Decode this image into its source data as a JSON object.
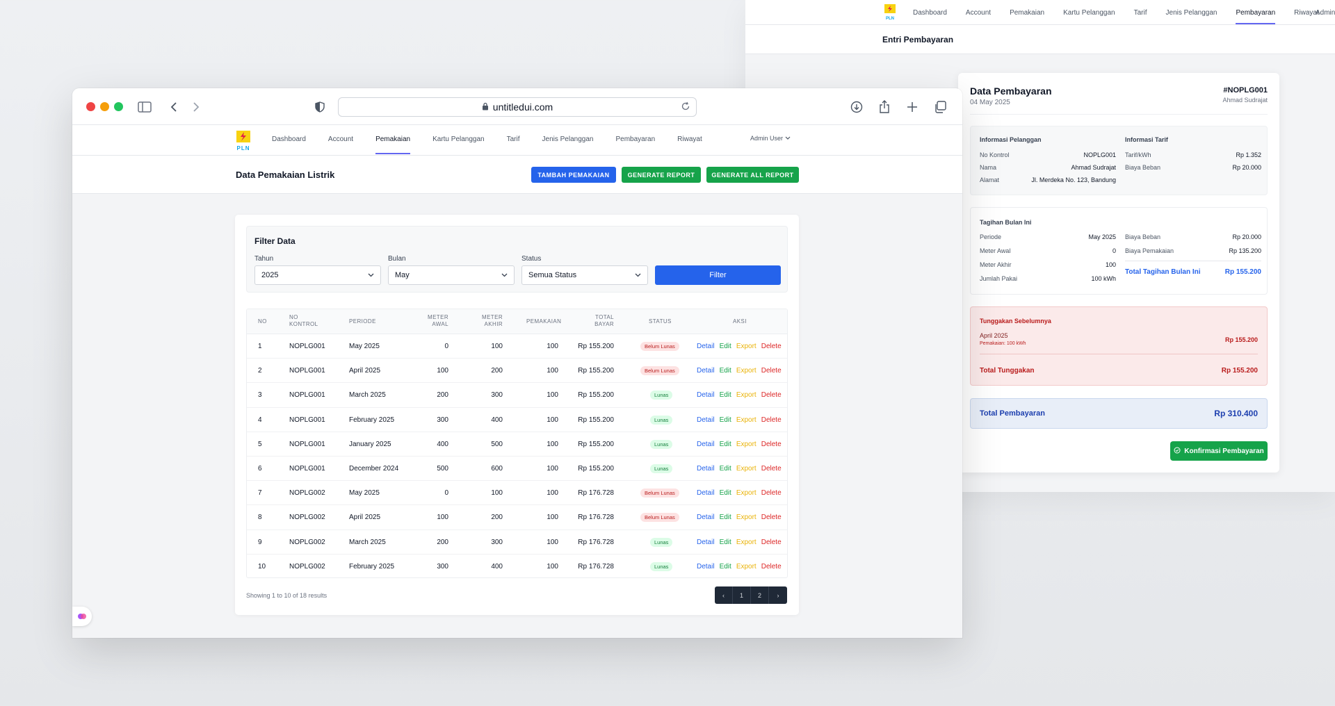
{
  "back": {
    "nav": [
      "Dashboard",
      "Account",
      "Pemakaian",
      "Kartu Pelanggan",
      "Tarif",
      "Jenis Pelanggan",
      "Pembayaran",
      "Riwayat"
    ],
    "admin": "Admin U",
    "page_title": "Entri Pembayaran",
    "card": {
      "title": "Data Pembayaran",
      "date": "04 May 2025",
      "invoice": "#NOPLG001",
      "customer": "Ahmad Sudrajat",
      "info_pelanggan": {
        "heading": "Informasi Pelanggan",
        "rows": [
          {
            "k": "No Kontrol",
            "v": "NOPLG001"
          },
          {
            "k": "Nama",
            "v": "Ahmad Sudrajat"
          },
          {
            "k": "Alamat",
            "v": "Jl. Merdeka No. 123, Bandung"
          }
        ]
      },
      "info_tarif": {
        "heading": "Informasi Tarif",
        "rows": [
          {
            "k": "Tarif/kWh",
            "v": "Rp 1.352"
          },
          {
            "k": "Biaya Beban",
            "v": "Rp 20.000"
          }
        ]
      },
      "tagihan": {
        "heading": "Tagihan Bulan Ini",
        "left": [
          {
            "k": "Periode",
            "v": "May 2025"
          },
          {
            "k": "Meter Awal",
            "v": "0"
          },
          {
            "k": "Meter Akhir",
            "v": "100"
          },
          {
            "k": "Jumlah Pakai",
            "v": "100 kWh"
          }
        ],
        "right": [
          {
            "k": "Biaya Beban",
            "v": "Rp 20.000"
          },
          {
            "k": "Biaya Pemakaian",
            "v": "Rp 135.200"
          }
        ],
        "total_label": "Total Tagihan Bulan Ini",
        "total_value": "Rp 155.200"
      },
      "tunggakan": {
        "heading": "Tunggakan Sebelumnya",
        "item_period": "April 2025",
        "item_note": "Pemakaian: 100 kWh",
        "item_value": "Rp 155.200",
        "total_label": "Total Tunggakan",
        "total_value": "Rp 155.200"
      },
      "total_bayar_label": "Total Pembayaran",
      "total_bayar_value": "Rp 310.400",
      "confirm_label": "Konfirmasi Pembayaran"
    }
  },
  "browser": {
    "url": "untitledui.com"
  },
  "app": {
    "logo_text": "PLN",
    "nav": [
      "Dashboard",
      "Account",
      "Pemakaian",
      "Kartu Pelanggan",
      "Tarif",
      "Jenis Pelanggan",
      "Pembayaran",
      "Riwayat"
    ],
    "active_nav": "Pemakaian",
    "admin": "Admin User",
    "page_title": "Data Pemakaian Listrik",
    "buttons": {
      "tambah": "TAMBAH PEMAKAIAN",
      "generate": "GENERATE REPORT",
      "generate_all": "GENERATE ALL REPORT"
    },
    "filter": {
      "heading": "Filter Data",
      "tahun_label": "Tahun",
      "tahun_value": "2025",
      "bulan_label": "Bulan",
      "bulan_value": "May",
      "status_label": "Status",
      "status_value": "Semua Status",
      "button": "Filter"
    },
    "table": {
      "headers": {
        "no": "NO",
        "kontrol_1": "NO",
        "kontrol_2": "KONTROL",
        "periode": "PERIODE",
        "awal_1": "METER",
        "awal_2": "AWAL",
        "akhir_1": "METER",
        "akhir_2": "AKHIR",
        "pemakaian": "PEMAKAIAN",
        "bayar_1": "TOTAL",
        "bayar_2": "BAYAR",
        "status": "STATUS",
        "aksi": "AKSI"
      },
      "actions": {
        "detail": "Detail",
        "edit": "Edit",
        "export": "Export",
        "delete": "Delete"
      },
      "rows": [
        {
          "no": "1",
          "kontrol": "NOPLG001",
          "periode": "May 2025",
          "awal": "0",
          "akhir": "100",
          "pakai": "100",
          "bayar": "Rp 155.200",
          "status": "Belum Lunas",
          "paid": false
        },
        {
          "no": "2",
          "kontrol": "NOPLG001",
          "periode": "April 2025",
          "awal": "100",
          "akhir": "200",
          "pakai": "100",
          "bayar": "Rp 155.200",
          "status": "Belum Lunas",
          "paid": false
        },
        {
          "no": "3",
          "kontrol": "NOPLG001",
          "periode": "March 2025",
          "awal": "200",
          "akhir": "300",
          "pakai": "100",
          "bayar": "Rp 155.200",
          "status": "Lunas",
          "paid": true
        },
        {
          "no": "4",
          "kontrol": "NOPLG001",
          "periode": "February 2025",
          "awal": "300",
          "akhir": "400",
          "pakai": "100",
          "bayar": "Rp 155.200",
          "status": "Lunas",
          "paid": true
        },
        {
          "no": "5",
          "kontrol": "NOPLG001",
          "periode": "January 2025",
          "awal": "400",
          "akhir": "500",
          "pakai": "100",
          "bayar": "Rp 155.200",
          "status": "Lunas",
          "paid": true
        },
        {
          "no": "6",
          "kontrol": "NOPLG001",
          "periode": "December 2024",
          "awal": "500",
          "akhir": "600",
          "pakai": "100",
          "bayar": "Rp 155.200",
          "status": "Lunas",
          "paid": true
        },
        {
          "no": "7",
          "kontrol": "NOPLG002",
          "periode": "May 2025",
          "awal": "0",
          "akhir": "100",
          "pakai": "100",
          "bayar": "Rp 176.728",
          "status": "Belum Lunas",
          "paid": false
        },
        {
          "no": "8",
          "kontrol": "NOPLG002",
          "periode": "April 2025",
          "awal": "100",
          "akhir": "200",
          "pakai": "100",
          "bayar": "Rp 176.728",
          "status": "Belum Lunas",
          "paid": false
        },
        {
          "no": "9",
          "kontrol": "NOPLG002",
          "periode": "March 2025",
          "awal": "200",
          "akhir": "300",
          "pakai": "100",
          "bayar": "Rp 176.728",
          "status": "Lunas",
          "paid": true
        },
        {
          "no": "10",
          "kontrol": "NOPLG002",
          "periode": "February 2025",
          "awal": "300",
          "akhir": "400",
          "pakai": "100",
          "bayar": "Rp 176.728",
          "status": "Lunas",
          "paid": true
        }
      ]
    },
    "showing": "Showing 1 to 10 of 18 results",
    "pager": {
      "prev": "‹",
      "p1": "1",
      "p2": "2",
      "next": "›"
    }
  },
  "colors": {
    "primary": "#2563eb",
    "success": "#16a34a",
    "accent_underline": "#6366f1",
    "danger": "#dc2626",
    "warning": "#eab308"
  }
}
